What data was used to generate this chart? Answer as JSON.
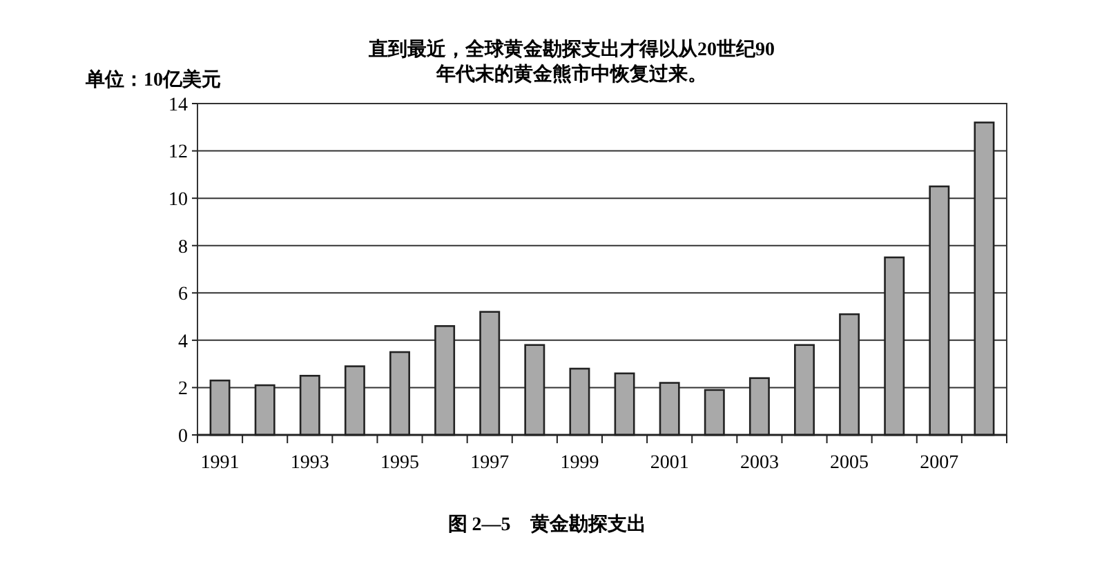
{
  "chart_data": {
    "type": "bar",
    "title": "直到最近，全球黄金勘探支出才得以从20世纪90年代末的黄金熊市中恢复过来。",
    "ylabel": "单位：10亿美元",
    "categories": [
      "1991",
      null,
      "1993",
      null,
      "1995",
      null,
      "1997",
      null,
      "1999",
      null,
      "2001",
      null,
      "2003",
      null,
      "2005",
      null,
      "2007",
      null
    ],
    "values": [
      2.3,
      2.1,
      2.5,
      2.9,
      3.5,
      4.6,
      5.2,
      3.8,
      2.8,
      2.6,
      2.2,
      1.9,
      2.4,
      3.8,
      5.1,
      7.5,
      10.5,
      13.2
    ],
    "color": "#a9a9a9",
    "ylim": [
      0,
      14
    ],
    "yticks": [
      0,
      2,
      4,
      6,
      8,
      10,
      12,
      14
    ],
    "grid": "y",
    "annotations": [
      "图 2—5　黄金勘探支出"
    ]
  }
}
